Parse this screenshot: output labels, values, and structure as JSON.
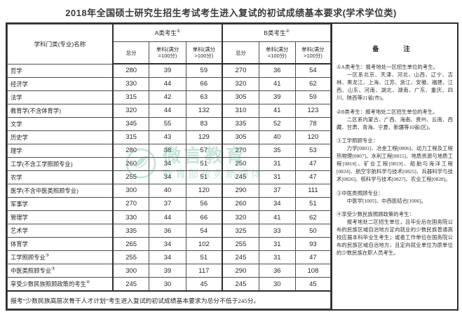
{
  "title": "2018年全国硕士研究生招生考试考生进入复试的初试成绩基本要求(学术学位类)",
  "colors": {
    "border": "#2e2e2e",
    "text": "#262626",
    "watermark_green": "#3fa57c",
    "background": "#ffffff"
  },
  "table": {
    "col_headers": {
      "subject": "学科门类(专业)名称",
      "group_a": {
        "label": "A类考生",
        "sup": "①"
      },
      "group_b": {
        "label": "B类考生",
        "sup": "②"
      },
      "remark_title": "备  注",
      "score_cols": [
        "总分",
        "单科(满分 =100分)",
        "单科(满分 >100分)"
      ]
    },
    "rows": [
      {
        "subject": "哲学",
        "sup": "",
        "a": [
          280,
          39,
          59
        ],
        "b": [
          270,
          36,
          54
        ]
      },
      {
        "subject": "经济学",
        "sup": "",
        "a": [
          330,
          44,
          66
        ],
        "b": [
          320,
          41,
          62
        ]
      },
      {
        "subject": "法学",
        "sup": "",
        "a": [
          315,
          42,
          63
        ],
        "b": [
          305,
          39,
          59
        ]
      },
      {
        "subject": "教育学(不含体育学)",
        "sup": "",
        "a": [
          320,
          44,
          132
        ],
        "b": [
          310,
          41,
          123
        ]
      },
      {
        "subject": "文学",
        "sup": "",
        "a": [
          345,
          55,
          83
        ],
        "b": [
          335,
          52,
          78
        ]
      },
      {
        "subject": "历史学",
        "sup": "",
        "a": [
          315,
          43,
          129
        ],
        "b": [
          305,
          40,
          120
        ]
      },
      {
        "subject": "理学",
        "sup": "",
        "a": [
          280,
          38,
          57
        ],
        "b": [
          270,
          35,
          53
        ]
      },
      {
        "subject": "工学(不含工学照顾专业)",
        "sup": "",
        "a": [
          260,
          34,
          51
        ],
        "b": [
          250,
          31,
          47
        ]
      },
      {
        "subject": "农学",
        "sup": "",
        "a": [
          255,
          34,
          51
        ],
        "b": [
          245,
          31,
          47
        ]
      },
      {
        "subject": "医学(不含中医类照顾专业)",
        "sup": "",
        "a": [
          300,
          40,
          120
        ],
        "b": [
          290,
          37,
          111
        ]
      },
      {
        "subject": "军事学",
        "sup": "",
        "a": [
          270,
          37,
          56
        ],
        "b": [
          260,
          34,
          51
        ]
      },
      {
        "subject": "管理学",
        "sup": "",
        "a": [
          330,
          44,
          66
        ],
        "b": [
          320,
          41,
          62
        ]
      },
      {
        "subject": "艺术学",
        "sup": "",
        "a": [
          335,
          36,
          54
        ],
        "b": [
          325,
          33,
          50
        ]
      },
      {
        "subject": "体育学",
        "sup": "",
        "a": [
          265,
          34,
          102
        ],
        "b": [
          255,
          31,
          93
        ]
      },
      {
        "subject": "工学照顾专业",
        "sup": "③",
        "a": [
          255,
          34,
          51
        ],
        "b": [
          245,
          31,
          47
        ]
      },
      {
        "subject": "中医类照顾专业",
        "sup": "③",
        "a": [
          300,
          39,
          117
        ],
        "b": [
          290,
          36,
          108
        ]
      },
      {
        "subject": "享受少数民族照顾政策的考生",
        "sup": "④",
        "a": [
          245,
          30,
          45
        ],
        "b": [
          245,
          30,
          45
        ]
      }
    ],
    "footer_note": "报考“少数民族高层次骨干人才计划”考生进入复试的初试成绩基本要求为总分不低于245分。",
    "remarks": [
      {
        "text": "①A类考生：报考地处一区招生单位的考生。",
        "indent": false,
        "gap": false
      },
      {
        "text": "一区系北京、天津、河北、山西、辽宁、吉林、黑龙江、上海、江苏、浙江、安徽、福建、江西、山东、河南、湖北、湖南、广东、重庆、四川、陕西等21省(市)。",
        "indent": true,
        "gap": false
      },
      {
        "text": "②B类考生：报考地处二区招生单位的考生。",
        "indent": false,
        "gap": true
      },
      {
        "text": "二区系内蒙古、广西、海南、贵州、云南、西藏、甘肃、青海、宁夏、新疆等10省(区)。",
        "indent": true,
        "gap": false
      },
      {
        "text": "③工学照顾专业：",
        "indent": false,
        "gap": true
      },
      {
        "text": "力学[0801]、冶金工程[0806]、动力工程及工程热物理[0807]、水利工程[0815]、地质资源与地质工程[0818]、矿业工程[0819]、船舶与海洋工程[0824]、航空宇航科学与技术[0825]、兵器科学与技术[0826]、核科学与技术[0827]、农业工程[0828]。",
        "indent": true,
        "gap": false
      },
      {
        "text": "③中医类照顾专业：",
        "indent": false,
        "gap": true
      },
      {
        "text": "中医学[1005]、中西医结合[1006]。",
        "indent": true,
        "gap": false
      },
      {
        "text": "④享受少数民族照顾政策的考生：",
        "indent": false,
        "gap": true
      },
      {
        "text": "报考地处二区招生单位，且毕业后在国务院公布的民族区域自治地方定向就业的少数民族普通高校应届本科毕业生考生；或者工作单位在国务院公布的民族区域自治地方，且定向就业单位为原单位的少数民族在职人员考生。",
        "indent": true,
        "gap": false
      }
    ]
  },
  "watermark": {
    "line1": "微言教育",
    "line2": "教育部政务新媒体"
  }
}
